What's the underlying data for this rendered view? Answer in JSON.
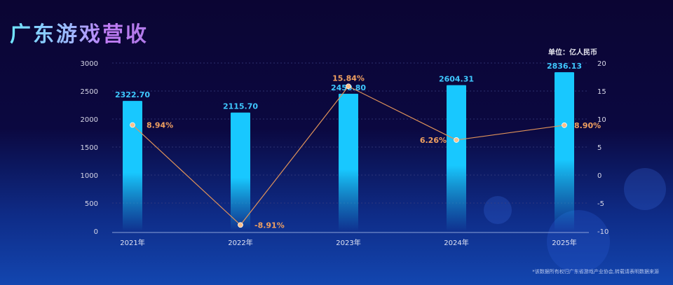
{
  "title": "广东游戏营收",
  "unit_label": "单位：亿人民币",
  "footnote": "*该数据所有权归广东省游戏产业协会,转载请表明数据来源",
  "colors": {
    "bar": "#18c8ff",
    "line": "#e0935a",
    "bar_label": "#3fc8ff",
    "line_label": "#f0a060"
  },
  "chart_data": {
    "type": "bar+line",
    "categories": [
      "2021年",
      "2022年",
      "2023年",
      "2024年",
      "2025年"
    ],
    "series": [
      {
        "type": "bar",
        "axis": "left",
        "values": [
          2322.7,
          2115.7,
          2450.8,
          2604.31,
          2836.13
        ],
        "labels": [
          "2322.70",
          "2115.70",
          "2450.80",
          "2604.31",
          "2836.13"
        ]
      },
      {
        "type": "line",
        "axis": "right",
        "values": [
          8.94,
          -8.91,
          15.84,
          6.26,
          8.9
        ],
        "labels": [
          "8.94%",
          "-8.91%",
          "15.84%",
          "6.26%",
          "8.90%"
        ]
      }
    ],
    "y_left": {
      "min": 0,
      "max": 3000,
      "ticks": [
        "0",
        "500",
        "1000",
        "1500",
        "2000",
        "2500",
        "3000"
      ]
    },
    "y_right": {
      "min": -10,
      "max": 20,
      "ticks": [
        "-10",
        "-5",
        "0",
        "5",
        "10",
        "15",
        "20"
      ]
    },
    "grid": true
  }
}
